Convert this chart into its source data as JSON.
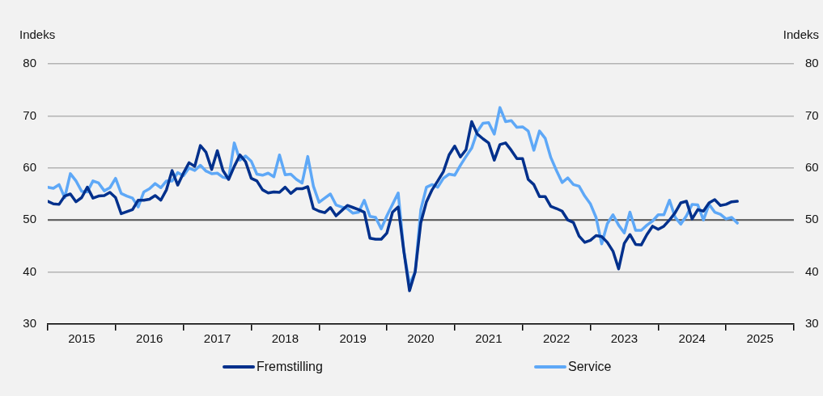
{
  "chart_data": {
    "type": "line",
    "ylabel": "Indeks",
    "y2label": "Indeks",
    "x": [
      "2015-01",
      "2015-02",
      "2015-03",
      "2015-04",
      "2015-05",
      "2015-06",
      "2015-07",
      "2015-08",
      "2015-09",
      "2015-10",
      "2015-11",
      "2015-12",
      "2016-01",
      "2016-02",
      "2016-03",
      "2016-04",
      "2016-05",
      "2016-06",
      "2016-07",
      "2016-08",
      "2016-09",
      "2016-10",
      "2016-11",
      "2016-12",
      "2017-01",
      "2017-02",
      "2017-03",
      "2017-04",
      "2017-05",
      "2017-06",
      "2017-07",
      "2017-08",
      "2017-09",
      "2017-10",
      "2017-11",
      "2017-12",
      "2018-01",
      "2018-02",
      "2018-03",
      "2018-04",
      "2018-05",
      "2018-06",
      "2018-07",
      "2018-08",
      "2018-09",
      "2018-10",
      "2018-11",
      "2018-12",
      "2019-01",
      "2019-02",
      "2019-03",
      "2019-04",
      "2019-05",
      "2019-06",
      "2019-07",
      "2019-08",
      "2019-09",
      "2019-10",
      "2019-11",
      "2019-12",
      "2020-01",
      "2020-02",
      "2020-03",
      "2020-04",
      "2020-05",
      "2020-06",
      "2020-07",
      "2020-08",
      "2020-09",
      "2020-10",
      "2020-11",
      "2020-12",
      "2021-01",
      "2021-02",
      "2021-03",
      "2021-04",
      "2021-05",
      "2021-06",
      "2021-07",
      "2021-08",
      "2021-09",
      "2021-10",
      "2021-11",
      "2021-12",
      "2022-01",
      "2022-02",
      "2022-03",
      "2022-04",
      "2022-05",
      "2022-06",
      "2022-07",
      "2022-08",
      "2022-09",
      "2022-10",
      "2022-11",
      "2022-12",
      "2023-01",
      "2023-02",
      "2023-03",
      "2023-04",
      "2023-05",
      "2023-06",
      "2023-07",
      "2023-08",
      "2023-09",
      "2023-10",
      "2023-11",
      "2023-12",
      "2024-01",
      "2024-02",
      "2024-03",
      "2024-04",
      "2024-05",
      "2024-06",
      "2024-07",
      "2024-08",
      "2024-09",
      "2024-10",
      "2024-11",
      "2024-12",
      "2025-01",
      "2025-02",
      "2025-03"
    ],
    "series": [
      {
        "name": "Fremstilling",
        "color": "#00308c",
        "values": [
          53.6,
          53.1,
          53,
          54.6,
          55,
          53.5,
          54.3,
          56.3,
          54.2,
          54.6,
          54.7,
          55.3,
          54.3,
          51.2,
          51.6,
          52,
          53.8,
          53.8,
          54,
          54.7,
          53.8,
          55.8,
          59.5,
          56.7,
          59,
          61,
          60.3,
          64.3,
          63,
          59.7,
          63.3,
          59.5,
          57.8,
          60.3,
          62.5,
          61.2,
          58,
          57.5,
          55.8,
          55.2,
          55.4,
          55.3,
          56.3,
          55.1,
          56,
          56,
          56.4,
          52.2,
          51.7,
          51.4,
          52.4,
          50.8,
          51.8,
          52.8,
          52.4,
          52,
          51.5,
          46.5,
          46.3,
          46.3,
          47.5,
          51.5,
          52.5,
          44,
          36.4,
          40,
          49.5,
          53.5,
          55.8,
          57.5,
          59.3,
          62.5,
          64.2,
          62.1,
          63.5,
          68.9,
          66.5,
          65.6,
          64.8,
          61.5,
          64.5,
          64.8,
          63.4,
          61.8,
          61.8,
          57.8,
          56.8,
          54.5,
          54.5,
          52.6,
          52.2,
          51.7,
          50,
          49.5,
          46.9,
          45.7,
          46.1,
          47,
          46.8,
          45.7,
          44,
          40.6,
          45.5,
          47.2,
          45.3,
          45.2,
          47.2,
          48.8,
          48.2,
          48.8,
          50,
          51.4,
          53.3,
          53.6,
          50.2,
          52,
          51.7,
          53.3,
          53.9,
          52.8,
          53,
          53.5,
          53.6
        ]
      },
      {
        "name": "Service",
        "color": "#5ea8f7",
        "values": [
          56.3,
          56.1,
          56.8,
          54.3,
          58.9,
          57.5,
          55.5,
          55.4,
          57.5,
          57.1,
          55.6,
          56.2,
          58,
          55.1,
          54.6,
          54.2,
          52.5,
          55.4,
          56,
          57,
          56.2,
          57.5,
          57.5,
          59.1,
          58.5,
          60,
          59.5,
          60.5,
          59.4,
          58.9,
          59,
          58.2,
          58,
          64.8,
          61.5,
          62.3,
          61.3,
          58.8,
          58.6,
          59,
          58.3,
          62.5,
          58.7,
          58.8,
          57.8,
          57.1,
          62.2,
          56.5,
          53.4,
          54.2,
          55,
          52.9,
          52.5,
          52.2,
          51.3,
          51.5,
          53.8,
          50.7,
          50.5,
          48.3,
          50.8,
          53,
          55.2,
          44,
          37.6,
          40,
          52,
          56.3,
          56.8,
          56.3,
          58,
          58.8,
          58.6,
          60.5,
          62.2,
          63.8,
          67,
          68.6,
          68.7,
          66.5,
          71.6,
          68.9,
          69.1,
          67.8,
          67.9,
          67.1,
          63.4,
          67.1,
          65.7,
          62,
          59.5,
          57.2,
          58.1,
          56.8,
          56.5,
          54.6,
          53.1,
          50.5,
          45.4,
          49.3,
          51,
          49,
          47.5,
          51.5,
          48,
          48,
          49,
          49.8,
          51,
          51,
          53.8,
          50.5,
          49.2,
          50.8,
          53,
          52.9,
          50,
          53,
          51.5,
          51.1,
          50.2,
          50.5,
          49.4
        ]
      }
    ],
    "xlim": [
      "2015-01",
      "2026-01"
    ],
    "xticks": [
      {
        "value": "2015-01",
        "label": null
      },
      {
        "value": "2015-07",
        "label": "2015"
      },
      {
        "value": "2016-01",
        "label": null
      },
      {
        "value": "2016-07",
        "label": "2016"
      },
      {
        "value": "2017-01",
        "label": null
      },
      {
        "value": "2017-07",
        "label": "2017"
      },
      {
        "value": "2018-01",
        "label": null
      },
      {
        "value": "2018-07",
        "label": "2018"
      },
      {
        "value": "2019-01",
        "label": null
      },
      {
        "value": "2019-07",
        "label": "2019"
      },
      {
        "value": "2020-01",
        "label": null
      },
      {
        "value": "2020-07",
        "label": "2020"
      },
      {
        "value": "2021-01",
        "label": null
      },
      {
        "value": "2021-07",
        "label": "2021"
      },
      {
        "value": "2022-01",
        "label": null
      },
      {
        "value": "2022-07",
        "label": "2022"
      },
      {
        "value": "2023-01",
        "label": null
      },
      {
        "value": "2023-07",
        "label": "2023"
      },
      {
        "value": "2024-01",
        "label": null
      },
      {
        "value": "2024-07",
        "label": "2024"
      },
      {
        "value": "2025-01",
        "label": null
      },
      {
        "value": "2025-07",
        "label": "2025"
      },
      {
        "value": "2026-01",
        "label": null
      }
    ],
    "ylim": [
      30,
      80
    ],
    "yticks": [
      30,
      40,
      50,
      60,
      70,
      80
    ],
    "y2lim": [
      30,
      80
    ],
    "y2ticks": [
      30,
      40,
      50,
      60,
      70,
      80
    ],
    "ref_lines": [
      {
        "axis": "y",
        "value": 50,
        "color": "#595959"
      }
    ],
    "grid": "y",
    "legend": "bottom",
    "marker": "none",
    "line_style": "solid"
  }
}
